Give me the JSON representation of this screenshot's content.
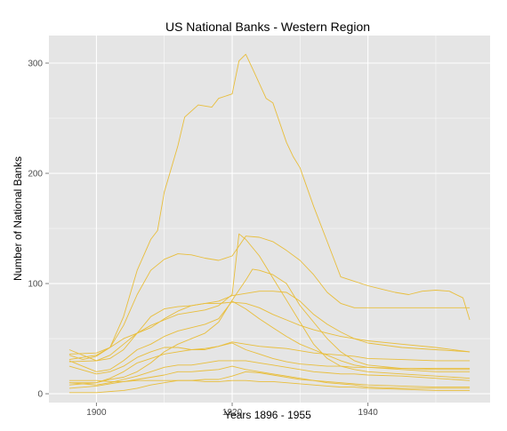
{
  "chart_data": {
    "type": "line",
    "title": "US National Banks - Western Region",
    "xlabel": "Years 1896 - 1955",
    "ylabel": "Number of National Banks",
    "xlim": [
      1893,
      1958
    ],
    "ylim": [
      -8,
      325
    ],
    "xticks": [
      1900,
      1920,
      1940
    ],
    "yticks": [
      0,
      100,
      200,
      300
    ],
    "grid": true,
    "legend": "none",
    "colors": {
      "background": "#E5E5E5",
      "grid": "#FFFFFF",
      "line": "#E8BE3C"
    },
    "series": [
      {
        "x": [
          1896,
          1898,
          1900,
          1902,
          1904,
          1906,
          1908,
          1909,
          1910,
          1912,
          1913,
          1915,
          1917,
          1918,
          1920,
          1921,
          1922,
          1923,
          1925,
          1926,
          1928,
          1929,
          1930,
          1932,
          1934,
          1936,
          1937,
          1940,
          1942,
          1944,
          1946,
          1948,
          1950,
          1952,
          1954,
          1955
        ],
        "y": [
          35,
          31,
          34,
          42,
          70,
          112,
          140,
          148,
          183,
          225,
          251,
          262,
          260,
          268,
          272,
          302,
          308,
          295,
          268,
          264,
          228,
          215,
          205,
          170,
          138,
          106,
          104,
          98,
          95,
          92,
          90,
          93,
          94,
          93,
          87,
          67
        ]
      },
      {
        "x": [
          1896,
          1900,
          1902,
          1904,
          1906,
          1908,
          1910,
          1912,
          1914,
          1916,
          1918,
          1920,
          1922,
          1924,
          1926,
          1928,
          1930,
          1932,
          1934,
          1936,
          1938,
          1940,
          1945,
          1950,
          1955
        ],
        "y": [
          31,
          35,
          42,
          62,
          90,
          112,
          122,
          127,
          126,
          123,
          121,
          125,
          143,
          142,
          138,
          130,
          121,
          108,
          92,
          82,
          78,
          78,
          78,
          78,
          78
        ]
      },
      {
        "x": [
          1896,
          1900,
          1902,
          1904,
          1906,
          1908,
          1910,
          1912,
          1914,
          1916,
          1918,
          1920,
          1921,
          1922,
          1924,
          1926,
          1928,
          1930,
          1932,
          1934,
          1936,
          1938,
          1940,
          1945,
          1950,
          1955
        ],
        "y": [
          29,
          30,
          35,
          45,
          55,
          62,
          67,
          72,
          74,
          76,
          80,
          90,
          145,
          140,
          125,
          105,
          85,
          65,
          45,
          32,
          25,
          22,
          20,
          18,
          16,
          14
        ]
      },
      {
        "x": [
          1896,
          1900,
          1902,
          1904,
          1906,
          1908,
          1910,
          1912,
          1914,
          1916,
          1918,
          1920,
          1922,
          1923,
          1924,
          1926,
          1928,
          1930,
          1932,
          1934,
          1936,
          1938,
          1940,
          1945,
          1950,
          1955
        ],
        "y": [
          10,
          10,
          13,
          15,
          20,
          28,
          38,
          45,
          50,
          55,
          65,
          85,
          103,
          113,
          112,
          108,
          100,
          80,
          65,
          50,
          38,
          30,
          26,
          23,
          22,
          22
        ]
      },
      {
        "x": [
          1896,
          1900,
          1902,
          1904,
          1906,
          1908,
          1910,
          1912,
          1914,
          1916,
          1918,
          1920,
          1922,
          1924,
          1926,
          1928,
          1930,
          1932,
          1934,
          1936,
          1938,
          1940,
          1945,
          1950,
          1955
        ],
        "y": [
          40,
          30,
          32,
          40,
          55,
          70,
          77,
          79,
          80,
          82,
          84,
          89,
          91,
          93,
          93,
          92,
          84,
          72,
          63,
          56,
          50,
          46,
          42,
          40,
          38
        ]
      },
      {
        "x": [
          1896,
          1900,
          1902,
          1904,
          1906,
          1908,
          1910,
          1912,
          1914,
          1916,
          1918,
          1920,
          1922,
          1924,
          1926,
          1928,
          1930,
          1932,
          1934,
          1936,
          1938,
          1940,
          1945,
          1950,
          1955
        ],
        "y": [
          36,
          37,
          42,
          50,
          55,
          60,
          68,
          75,
          80,
          82,
          82,
          83,
          82,
          78,
          72,
          67,
          62,
          58,
          55,
          52,
          50,
          48,
          45,
          42,
          38
        ]
      },
      {
        "x": [
          1896,
          1900,
          1902,
          1904,
          1906,
          1908,
          1910,
          1912,
          1914,
          1916,
          1918,
          1920,
          1922,
          1924,
          1926,
          1928,
          1930,
          1932,
          1934,
          1936,
          1938,
          1940,
          1945,
          1950,
          1955
        ],
        "y": [
          30,
          20,
          22,
          30,
          40,
          45,
          52,
          57,
          60,
          63,
          68,
          84,
          77,
          68,
          60,
          52,
          45,
          40,
          35,
          30,
          26,
          24,
          22,
          20,
          20
        ]
      },
      {
        "x": [
          1896,
          1900,
          1902,
          1904,
          1906,
          1908,
          1910,
          1912,
          1914,
          1916,
          1918,
          1920,
          1922,
          1924,
          1926,
          1928,
          1930,
          1932,
          1934,
          1936,
          1938,
          1940,
          1945,
          1950,
          1955
        ],
        "y": [
          25,
          18,
          20,
          25,
          33,
          38,
          42,
          42,
          40,
          40,
          43,
          47,
          45,
          43,
          42,
          41,
          39,
          37,
          36,
          35,
          34,
          32,
          31,
          30,
          30
        ]
      },
      {
        "x": [
          1896,
          1900,
          1902,
          1904,
          1906,
          1908,
          1910,
          1912,
          1914,
          1916,
          1918,
          1920,
          1922,
          1924,
          1926,
          1928,
          1930,
          1932,
          1934,
          1936,
          1938,
          1940,
          1945,
          1950,
          1955
        ],
        "y": [
          8,
          10,
          14,
          20,
          28,
          32,
          36,
          38,
          40,
          41,
          43,
          46,
          40,
          36,
          32,
          29,
          27,
          26,
          25,
          25,
          24,
          24,
          23,
          23,
          23
        ]
      },
      {
        "x": [
          1896,
          1900,
          1902,
          1904,
          1906,
          1908,
          1910,
          1912,
          1914,
          1916,
          1918,
          1920,
          1922,
          1924,
          1926,
          1928,
          1930,
          1932,
          1934,
          1936,
          1938,
          1940,
          1945,
          1950,
          1955
        ],
        "y": [
          10,
          8,
          10,
          13,
          16,
          20,
          24,
          26,
          26,
          28,
          30,
          30,
          30,
          28,
          26,
          24,
          22,
          20,
          19,
          18,
          18,
          17,
          16,
          14,
          12
        ]
      },
      {
        "x": [
          1896,
          1900,
          1902,
          1904,
          1906,
          1908,
          1910,
          1912,
          1914,
          1916,
          1918,
          1920,
          1922,
          1924,
          1926,
          1928,
          1930,
          1932,
          1934,
          1936,
          1938,
          1940,
          1945,
          1950,
          1955
        ],
        "y": [
          5,
          7,
          9,
          11,
          13,
          15,
          17,
          20,
          20,
          21,
          22,
          25,
          22,
          20,
          18,
          16,
          14,
          12,
          11,
          10,
          9,
          8,
          7,
          6,
          6
        ]
      },
      {
        "x": [
          1896,
          1900,
          1902,
          1904,
          1906,
          1908,
          1910,
          1912,
          1914,
          1916,
          1918,
          1920,
          1922,
          1924,
          1926,
          1928,
          1930,
          1932,
          1934,
          1936,
          1938,
          1940,
          1945,
          1950,
          1955
        ],
        "y": [
          1,
          1,
          2,
          3,
          5,
          8,
          10,
          12,
          12,
          13,
          13,
          16,
          20,
          19,
          17,
          15,
          13,
          12,
          10,
          9,
          8,
          6,
          5,
          5,
          5
        ]
      },
      {
        "x": [
          1896,
          1900,
          1902,
          1904,
          1906,
          1908,
          1910,
          1912,
          1914,
          1916,
          1918,
          1920,
          1922,
          1924,
          1926,
          1928,
          1930,
          1932,
          1934,
          1936,
          1938,
          1940,
          1945,
          1950,
          1955
        ],
        "y": [
          12,
          12,
          11,
          11,
          12,
          12,
          12,
          12,
          12,
          11,
          11,
          12,
          12,
          11,
          11,
          10,
          9,
          8,
          7,
          6,
          6,
          5,
          4,
          3,
          3
        ]
      }
    ]
  }
}
